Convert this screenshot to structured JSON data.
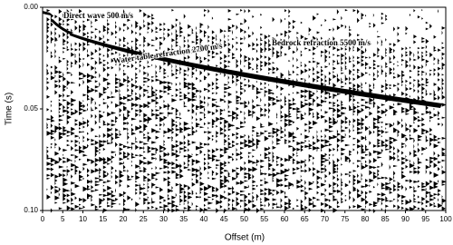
{
  "chart_data": {
    "type": "seismogram",
    "annotations": [
      "Direct wave 500 m/s",
      "Bedrock refraction 5500 m/s",
      "Water table refraction 2700 m/s"
    ],
    "x_label": "Offset (m)",
    "y_label": "Time (s)",
    "xlim": [
      0,
      100
    ],
    "xticks": [
      0,
      5,
      10,
      15,
      20,
      25,
      30,
      35,
      40,
      45,
      50,
      55,
      60,
      65,
      70,
      75,
      80,
      85,
      90,
      95,
      100
    ],
    "ylim": [
      0,
      0.1
    ],
    "y_inverted": true,
    "yticks": [
      {
        "value": 0,
        "label": "0.00"
      },
      {
        "value": 0.05,
        "label": "0.05"
      },
      {
        "value": 0.1,
        "label": "0.10"
      }
    ]
  }
}
